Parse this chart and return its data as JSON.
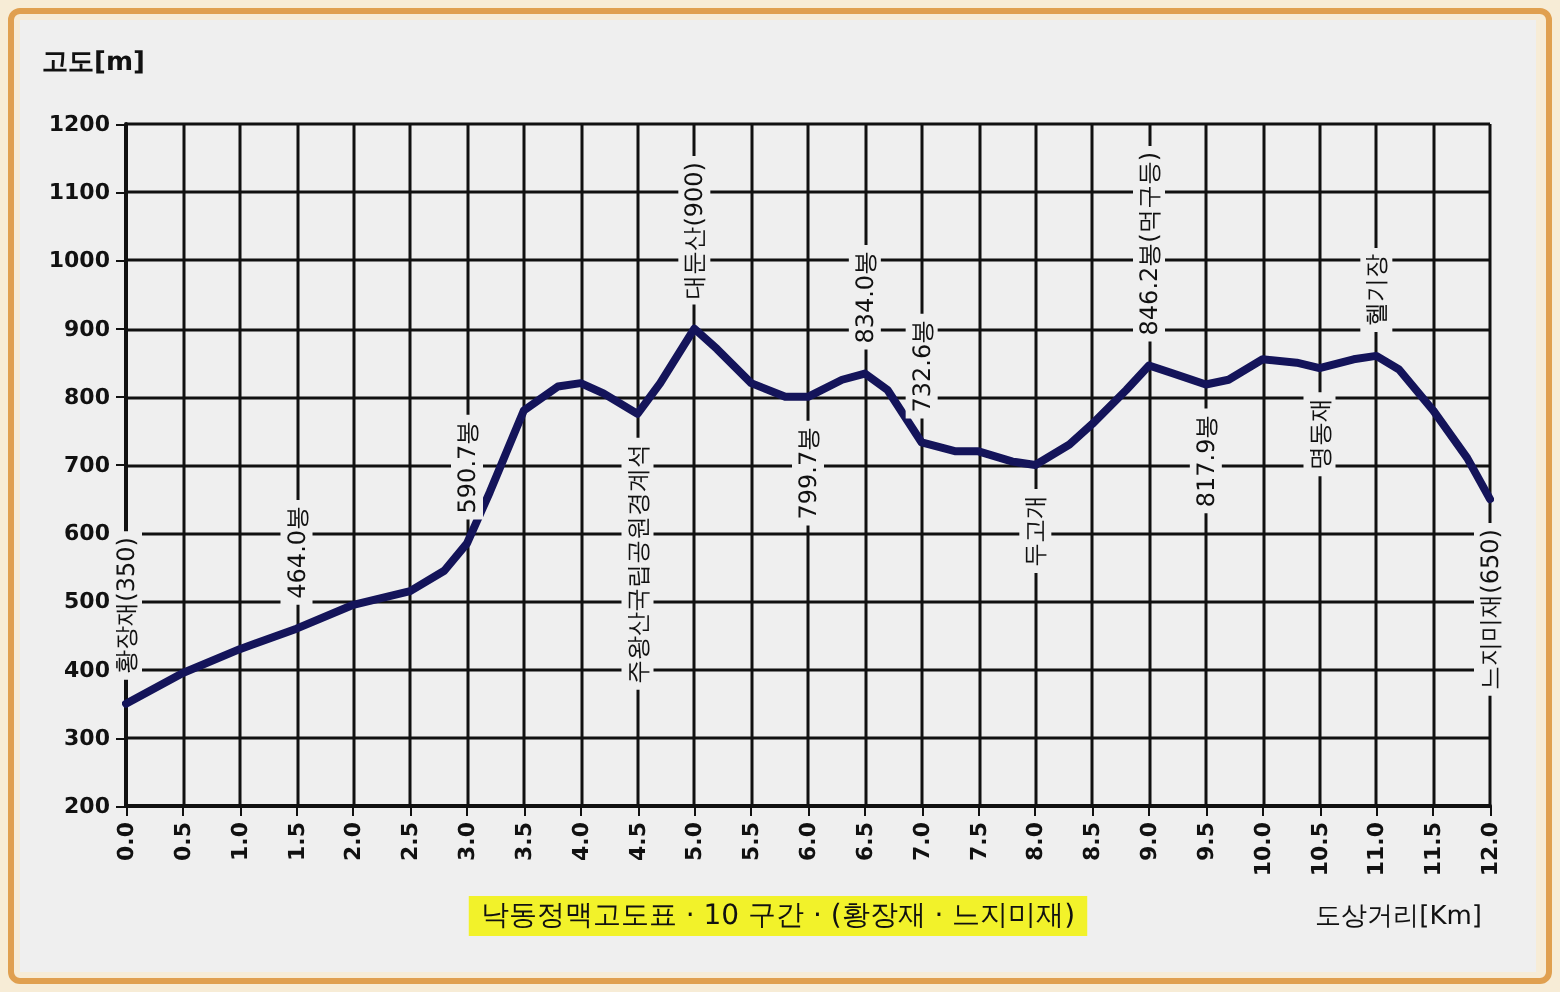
{
  "chart_data": {
    "type": "line",
    "title": "낙동정맥고도표 · 10 구간 · (황장재 · 느지미재)",
    "xlabel": "도상거리[Km]",
    "ylabel": "고도[m]",
    "series": [
      {
        "color": "#14145a",
        "x": [
          0,
          0.5,
          1.0,
          1.5,
          2.0,
          2.5,
          2.8,
          3.0,
          3.2,
          3.5,
          3.8,
          4.0,
          4.2,
          4.5,
          4.7,
          5.0,
          5.2,
          5.5,
          5.8,
          6.0,
          6.3,
          6.5,
          6.7,
          7.0,
          7.3,
          7.5,
          7.8,
          8.0,
          8.3,
          8.5,
          8.8,
          9.0,
          9.2,
          9.5,
          9.7,
          10.0,
          10.3,
          10.5,
          10.8,
          11.0,
          11.2,
          11.5,
          11.8,
          12.0
        ],
        "values": [
          350,
          395,
          430,
          460,
          495,
          515,
          545,
          585,
          660,
          780,
          815,
          820,
          805,
          775,
          820,
          900,
          870,
          820,
          800,
          800,
          825,
          834,
          810,
          733,
          720,
          720,
          705,
          700,
          730,
          760,
          810,
          846,
          835,
          818,
          825,
          855,
          850,
          842,
          855,
          860,
          840,
          780,
          710,
          650
        ]
      }
    ],
    "annotations": [
      {
        "text": "황장재(350)",
        "x": 0,
        "y": 350
      },
      {
        "text": "464.0봉",
        "x": 1.5,
        "y": 460
      },
      {
        "text": "590.7봉",
        "x": 3.0,
        "y": 585
      },
      {
        "text": "주왕산국립공원경계석",
        "x": 4.5,
        "y": 775
      },
      {
        "text": "대둔산(900)",
        "x": 5.0,
        "y": 900
      },
      {
        "text": "799.7봉",
        "x": 6.0,
        "y": 800
      },
      {
        "text": "834.0봉",
        "x": 6.5,
        "y": 834
      },
      {
        "text": "732.6봉",
        "x": 7.0,
        "y": 733
      },
      {
        "text": "두고개",
        "x": 8.0,
        "y": 700
      },
      {
        "text": "846.2봉(먹구등)",
        "x": 9.0,
        "y": 846
      },
      {
        "text": "817.9봉",
        "x": 9.5,
        "y": 818
      },
      {
        "text": "명동재",
        "x": 10.5,
        "y": 842
      },
      {
        "text": "헬기장",
        "x": 11.0,
        "y": 860
      },
      {
        "text": "느지미재(650)",
        "x": 12.0,
        "y": 650
      }
    ],
    "xlim": [
      0,
      12
    ],
    "xticks": [
      {
        "value": 0,
        "label": "0.0"
      },
      {
        "value": 0.5,
        "label": "0.5"
      },
      {
        "value": 1,
        "label": "1.0"
      },
      {
        "value": 1.5,
        "label": "1.5"
      },
      {
        "value": 2,
        "label": "2.0"
      },
      {
        "value": 2.5,
        "label": "2.5"
      },
      {
        "value": 3,
        "label": "3.0"
      },
      {
        "value": 3.5,
        "label": "3.5"
      },
      {
        "value": 4,
        "label": "4.0"
      },
      {
        "value": 4.5,
        "label": "4.5"
      },
      {
        "value": 5,
        "label": "5.0"
      },
      {
        "value": 5.5,
        "label": "5.5"
      },
      {
        "value": 6,
        "label": "6.0"
      },
      {
        "value": 6.5,
        "label": "6.5"
      },
      {
        "value": 7,
        "label": "7.0"
      },
      {
        "value": 7.5,
        "label": "7.5"
      },
      {
        "value": 8,
        "label": "8.0"
      },
      {
        "value": 8.5,
        "label": "8.5"
      },
      {
        "value": 9,
        "label": "9.0"
      },
      {
        "value": 9.5,
        "label": "9.5"
      },
      {
        "value": 10,
        "label": "10.0"
      },
      {
        "value": 10.5,
        "label": "10.5"
      },
      {
        "value": 11,
        "label": "11.0"
      },
      {
        "value": 11.5,
        "label": "11.5"
      },
      {
        "value": 12,
        "label": "12.0"
      }
    ],
    "ylim": [
      200,
      1200
    ],
    "yticks": [
      200,
      300,
      400,
      500,
      600,
      700,
      800,
      900,
      1000,
      1100,
      1200
    ],
    "grid": true,
    "marker": "none",
    "line_style": "solid"
  }
}
